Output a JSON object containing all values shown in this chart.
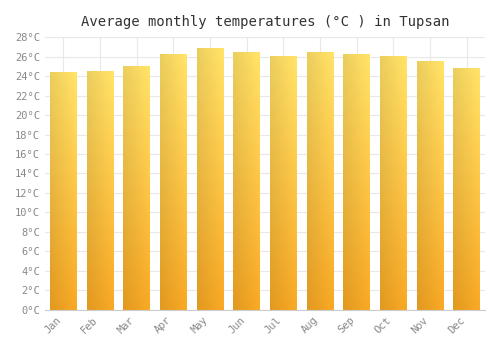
{
  "title": "Average monthly temperatures (°C ) in Tupsan",
  "months": [
    "Jan",
    "Feb",
    "Mar",
    "Apr",
    "May",
    "Jun",
    "Jul",
    "Aug",
    "Sep",
    "Oct",
    "Nov",
    "Dec"
  ],
  "values": [
    24.4,
    24.5,
    25.0,
    26.2,
    26.8,
    26.4,
    26.0,
    26.4,
    26.2,
    26.0,
    25.5,
    24.8
  ],
  "ylim": [
    0,
    28
  ],
  "yticks": [
    0,
    2,
    4,
    6,
    8,
    10,
    12,
    14,
    16,
    18,
    20,
    22,
    24,
    26,
    28
  ],
  "ytick_labels": [
    "0°C",
    "2°C",
    "4°C",
    "6°C",
    "8°C",
    "10°C",
    "12°C",
    "14°C",
    "16°C",
    "18°C",
    "20°C",
    "22°C",
    "24°C",
    "26°C",
    "28°C"
  ],
  "background_color": "#ffffff",
  "grid_color": "#e8e8e8",
  "title_fontsize": 10,
  "tick_fontsize": 7.5,
  "font_family": "monospace",
  "bar_bottom_color": "#F5A623",
  "bar_top_color": "#FFE066",
  "bar_width": 0.72
}
